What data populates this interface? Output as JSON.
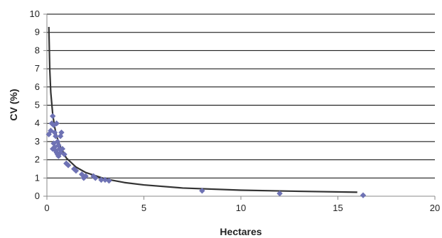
{
  "chart_data": {
    "type": "scatter",
    "title": "",
    "xlabel": "Hectares",
    "ylabel": "CV (%)",
    "xlim": [
      0,
      20
    ],
    "ylim": [
      0,
      10
    ],
    "x_ticks": [
      0,
      5,
      10,
      15,
      20
    ],
    "y_ticks": [
      0,
      1,
      2,
      3,
      4,
      5,
      6,
      7,
      8,
      9,
      10
    ],
    "grid": "horizontal",
    "legend": "none",
    "colors": {
      "points": "#6e72b4",
      "trend": "#333333",
      "grid": "#000000",
      "axis": "#888888"
    },
    "series": [
      {
        "kind": "points",
        "values": [
          [
            0.1,
            3.4
          ],
          [
            0.2,
            3.6
          ],
          [
            0.25,
            4.0
          ],
          [
            0.3,
            4.4
          ],
          [
            0.35,
            3.9
          ],
          [
            0.4,
            3.5
          ],
          [
            0.45,
            3.3
          ],
          [
            0.5,
            4.0
          ],
          [
            0.55,
            3.0
          ],
          [
            0.6,
            2.8
          ],
          [
            0.65,
            2.6
          ],
          [
            0.7,
            3.3
          ],
          [
            0.3,
            2.6
          ],
          [
            0.35,
            2.9
          ],
          [
            0.4,
            2.7
          ],
          [
            0.45,
            2.5
          ],
          [
            0.5,
            2.4
          ],
          [
            0.55,
            2.3
          ],
          [
            0.6,
            2.2
          ],
          [
            0.7,
            2.4
          ],
          [
            0.8,
            2.6
          ],
          [
            0.75,
            3.5
          ],
          [
            0.9,
            2.3
          ],
          [
            1.0,
            1.8
          ],
          [
            1.1,
            1.7
          ],
          [
            1.4,
            1.5
          ],
          [
            1.5,
            1.4
          ],
          [
            1.8,
            1.2
          ],
          [
            1.9,
            1.0
          ],
          [
            2.0,
            1.1
          ],
          [
            2.4,
            1.1
          ],
          [
            2.5,
            1.0
          ],
          [
            2.8,
            0.9
          ],
          [
            3.0,
            0.9
          ],
          [
            3.2,
            0.85
          ],
          [
            8.0,
            0.3
          ],
          [
            12.0,
            0.15
          ],
          [
            16.3,
            0.05
          ]
        ]
      },
      {
        "kind": "trend",
        "values": [
          [
            0.1,
            9.3
          ],
          [
            0.15,
            6.9
          ],
          [
            0.2,
            5.7
          ],
          [
            0.3,
            4.5
          ],
          [
            0.4,
            3.8
          ],
          [
            0.5,
            3.3
          ],
          [
            0.7,
            2.7
          ],
          [
            1.0,
            2.1
          ],
          [
            1.5,
            1.6
          ],
          [
            2.0,
            1.3
          ],
          [
            3.0,
            0.95
          ],
          [
            4.0,
            0.75
          ],
          [
            5.0,
            0.62
          ],
          [
            7.0,
            0.45
          ],
          [
            10.0,
            0.33
          ],
          [
            13.0,
            0.27
          ],
          [
            16.0,
            0.22
          ]
        ]
      }
    ]
  }
}
